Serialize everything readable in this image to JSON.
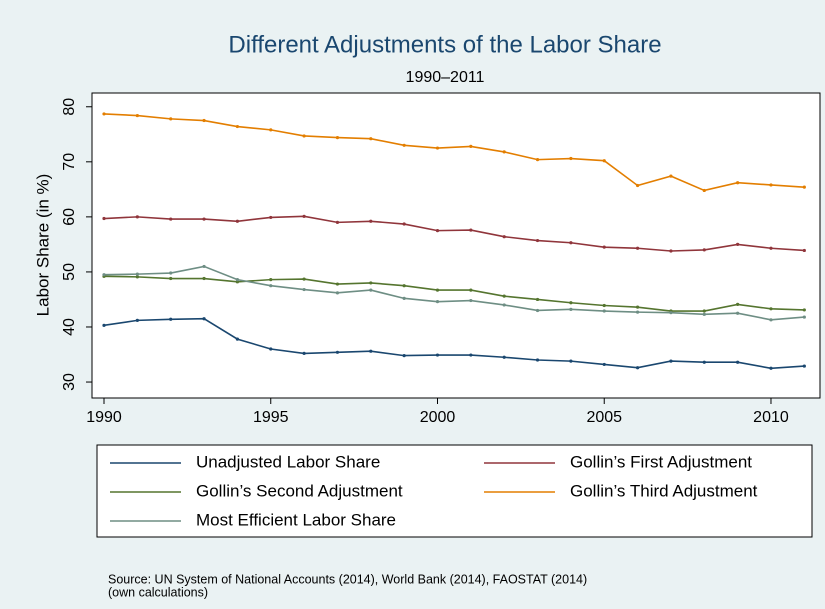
{
  "chart_data": {
    "type": "line",
    "title": "Different Adjustments of the Labor Share",
    "subtitle": "1990–2011",
    "y_label": "Labor Share (in %)",
    "note": [
      "Source: UN System of National Accounts (2014), World Bank (2014), FAOSTAT (2014)",
      "(own calculations)"
    ],
    "x": [
      1990,
      1991,
      1992,
      1993,
      1994,
      1995,
      1996,
      1997,
      1998,
      1999,
      2000,
      2001,
      2002,
      2003,
      2004,
      2005,
      2006,
      2007,
      2008,
      2009,
      2010,
      2011
    ],
    "xlim": [
      1989.64,
      2011.47
    ],
    "xticks": [
      1990,
      1995,
      2000,
      2005,
      2010
    ],
    "ylim": [
      27.1,
      82.5
    ],
    "yticks": [
      30,
      40,
      50,
      60,
      70,
      80
    ],
    "series": [
      {
        "name": "Unadjusted Labor Share",
        "color": "#1a476f",
        "values": [
          40.3,
          41.2,
          41.4,
          41.5,
          37.8,
          36.0,
          35.2,
          35.4,
          35.6,
          34.8,
          34.9,
          34.9,
          34.5,
          34.0,
          33.8,
          33.2,
          32.6,
          33.8,
          33.6,
          33.6,
          32.5,
          32.9
        ]
      },
      {
        "name": "Gollin’s First Adjustment",
        "color": "#90353b",
        "values": [
          59.7,
          60.0,
          59.6,
          59.6,
          59.2,
          59.9,
          60.1,
          59.0,
          59.2,
          58.7,
          57.5,
          57.6,
          56.4,
          55.7,
          55.3,
          54.5,
          54.3,
          53.8,
          54.0,
          55.0,
          54.3,
          53.9
        ]
      },
      {
        "name": "Gollin’s Second Adjustment",
        "color": "#55752f",
        "values": [
          49.2,
          49.1,
          48.8,
          48.8,
          48.2,
          48.6,
          48.7,
          47.8,
          48.0,
          47.5,
          46.7,
          46.7,
          45.6,
          45.0,
          44.4,
          43.9,
          43.6,
          42.9,
          42.9,
          44.1,
          43.3,
          43.1
        ]
      },
      {
        "name": "Gollin’s Third Adjustment",
        "color": "#e37e00",
        "values": [
          78.7,
          78.4,
          77.8,
          77.5,
          76.4,
          75.8,
          74.7,
          74.4,
          74.2,
          73.0,
          72.5,
          72.8,
          71.8,
          70.4,
          70.6,
          70.2,
          65.7,
          67.4,
          64.8,
          66.2,
          65.8,
          65.4
        ]
      },
      {
        "name": "Most Efficient Labor Share",
        "color": "#6e8e84",
        "values": [
          49.5,
          49.6,
          49.8,
          51.0,
          48.6,
          47.5,
          46.8,
          46.2,
          46.7,
          45.2,
          44.6,
          44.8,
          44.0,
          43.0,
          43.2,
          42.9,
          42.7,
          42.6,
          42.3,
          42.5,
          41.3,
          41.8
        ]
      }
    ]
  }
}
